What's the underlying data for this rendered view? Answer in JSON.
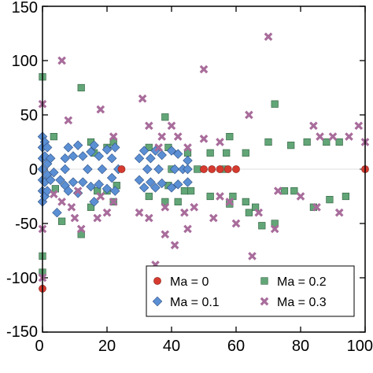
{
  "chart_data": {
    "type": "scatter",
    "title": "",
    "xlabel": "",
    "ylabel": "",
    "xlim": [
      0,
      100
    ],
    "ylim": [
      -150,
      150
    ],
    "xticks": [
      0,
      20,
      40,
      60,
      80,
      100
    ],
    "yticks": [
      -150,
      -100,
      -50,
      0,
      50,
      100,
      150
    ],
    "xtick_labels": [
      "0",
      "20",
      "40",
      "60",
      "80",
      "100"
    ],
    "ytick_labels": [
      "-150",
      "-100",
      "-50",
      "0",
      "50",
      "100",
      "150"
    ],
    "grid": false,
    "legend_position": "bottom-right",
    "series": [
      {
        "name": "Ma = 0",
        "marker": "circle",
        "color": "#d63a2f",
        "points": [
          [
            0,
            -110
          ],
          [
            24.5,
            0
          ],
          [
            50,
            0
          ],
          [
            52.5,
            0
          ],
          [
            55,
            0
          ],
          [
            57.5,
            0
          ],
          [
            60,
            0
          ],
          [
            100,
            0
          ]
        ]
      },
      {
        "name": "Ma = 0.1",
        "marker": "diamond",
        "color": "#5b8fd4",
        "points": [
          [
            0,
            30
          ],
          [
            0,
            20
          ],
          [
            0,
            10
          ],
          [
            0,
            0
          ],
          [
            0,
            -10
          ],
          [
            0,
            -20
          ],
          [
            0,
            -30
          ],
          [
            0.7,
            25
          ],
          [
            0.7,
            12
          ],
          [
            0.7,
            -12
          ],
          [
            0.7,
            -25
          ],
          [
            1.5,
            20
          ],
          [
            1.5,
            5
          ],
          [
            1.5,
            -5
          ],
          [
            1.5,
            -20
          ],
          [
            2.5,
            10
          ],
          [
            2.5,
            -10
          ],
          [
            3.5,
            -3
          ],
          [
            4.5,
            -40
          ],
          [
            5.5,
            -10
          ],
          [
            7,
            10
          ],
          [
            7,
            0
          ],
          [
            7,
            -15
          ],
          [
            8,
            20
          ],
          [
            8,
            -20
          ],
          [
            9.5,
            12
          ],
          [
            9.5,
            -12
          ],
          [
            11,
            22
          ],
          [
            11,
            -22
          ],
          [
            12.5,
            12
          ],
          [
            12.5,
            -12
          ],
          [
            14,
            0
          ],
          [
            15,
            16
          ],
          [
            15,
            -16
          ],
          [
            16,
            22
          ],
          [
            16,
            -30
          ],
          [
            17.5,
            12
          ],
          [
            17.5,
            -14
          ],
          [
            18.5,
            0
          ],
          [
            20,
            18
          ],
          [
            20,
            -18
          ],
          [
            21.5,
            10
          ],
          [
            21.5,
            -8
          ],
          [
            22.5,
            20
          ],
          [
            22.5,
            -20
          ],
          [
            23.5,
            0
          ],
          [
            30,
            10
          ],
          [
            30,
            -10
          ],
          [
            31.5,
            17
          ],
          [
            31.5,
            -17
          ],
          [
            32.5,
            0
          ],
          [
            33.5,
            10
          ],
          [
            33.5,
            -12
          ],
          [
            35,
            17
          ],
          [
            35,
            -17
          ],
          [
            36,
            0
          ],
          [
            37,
            13
          ],
          [
            37,
            -13
          ],
          [
            40,
            17
          ],
          [
            40,
            -17
          ],
          [
            41,
            0
          ],
          [
            42,
            14
          ],
          [
            42,
            -14
          ],
          [
            43.5,
            0
          ],
          [
            45,
            0
          ],
          [
            45,
            8
          ],
          [
            45,
            -12
          ]
        ]
      },
      {
        "name": "Ma = 0.2",
        "marker": "square",
        "color": "#62a677",
        "points": [
          [
            0,
            85
          ],
          [
            0,
            -80
          ],
          [
            0,
            -95
          ],
          [
            3.5,
            30
          ],
          [
            4,
            -18
          ],
          [
            6,
            -48
          ],
          [
            12,
            75
          ],
          [
            12,
            -60
          ],
          [
            15,
            25
          ],
          [
            15,
            -35
          ],
          [
            16,
            15
          ],
          [
            17,
            -20
          ],
          [
            20,
            20
          ],
          [
            20,
            -20
          ],
          [
            22,
            25
          ],
          [
            22,
            -30
          ],
          [
            23,
            -15
          ],
          [
            33,
            20
          ],
          [
            33,
            -25
          ],
          [
            38,
            48
          ],
          [
            38,
            -30
          ],
          [
            39,
            20
          ],
          [
            39,
            -15
          ],
          [
            40,
            0
          ],
          [
            42,
            -30
          ],
          [
            44,
            -20
          ],
          [
            45,
            15
          ],
          [
            46,
            -20
          ],
          [
            48,
            0
          ],
          [
            52,
            15
          ],
          [
            52,
            -25
          ],
          [
            56,
            0
          ],
          [
            57,
            15
          ],
          [
            58,
            30
          ],
          [
            58,
            -32
          ],
          [
            59,
            -25
          ],
          [
            63,
            15
          ],
          [
            63,
            -30
          ],
          [
            64,
            -40
          ],
          [
            66,
            -35
          ],
          [
            68,
            -52
          ],
          [
            70,
            25
          ],
          [
            72,
            60
          ],
          [
            72,
            -50
          ],
          [
            75,
            -20
          ],
          [
            77,
            22
          ],
          [
            78,
            -20
          ],
          [
            82,
            25
          ],
          [
            84,
            -35
          ],
          [
            88,
            25
          ],
          [
            89,
            -28
          ],
          [
            92,
            25
          ],
          [
            94,
            -25
          ]
        ]
      },
      {
        "name": "Ma = 0.3",
        "marker": "x",
        "color": "#a86c9b",
        "points": [
          [
            0,
            60
          ],
          [
            0,
            -55
          ],
          [
            0,
            -100
          ],
          [
            3.5,
            -23
          ],
          [
            6,
            100
          ],
          [
            6,
            -30
          ],
          [
            8,
            45
          ],
          [
            9,
            -35
          ],
          [
            10,
            -45
          ],
          [
            11,
            -20
          ],
          [
            12,
            -55
          ],
          [
            17,
            -45
          ],
          [
            18,
            55
          ],
          [
            18,
            -25
          ],
          [
            20,
            -40
          ],
          [
            22,
            30
          ],
          [
            22,
            -30
          ],
          [
            30,
            -40
          ],
          [
            31,
            65
          ],
          [
            33,
            40
          ],
          [
            33,
            -45
          ],
          [
            35,
            -88
          ],
          [
            36,
            20
          ],
          [
            37,
            30
          ],
          [
            38,
            -35
          ],
          [
            38,
            -60
          ],
          [
            40,
            40
          ],
          [
            41,
            -70
          ],
          [
            42,
            30
          ],
          [
            44,
            -40
          ],
          [
            45,
            20
          ],
          [
            45,
            -55
          ],
          [
            47,
            -35
          ],
          [
            50,
            92
          ],
          [
            50,
            28
          ],
          [
            53,
            -45
          ],
          [
            55,
            25
          ],
          [
            55,
            -25
          ],
          [
            58,
            -30
          ],
          [
            60,
            -50
          ],
          [
            64,
            50
          ],
          [
            65,
            -80
          ],
          [
            67,
            -40
          ],
          [
            70,
            122
          ],
          [
            72,
            -55
          ],
          [
            73,
            -20
          ],
          [
            80,
            -25
          ],
          [
            84,
            40
          ],
          [
            85,
            -35
          ],
          [
            86,
            30
          ],
          [
            90,
            30
          ],
          [
            92,
            -40
          ],
          [
            95,
            30
          ],
          [
            98,
            40
          ],
          [
            100,
            25
          ]
        ]
      }
    ]
  }
}
